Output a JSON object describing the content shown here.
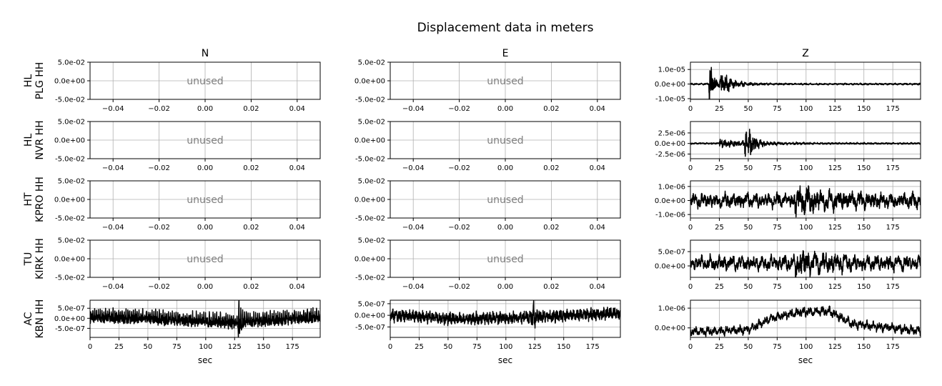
{
  "title": "Displacement data in meters",
  "columns": [
    "N",
    "E",
    "Z"
  ],
  "rows": [
    {
      "network": "HL",
      "station": "PLG HH"
    },
    {
      "network": "HL",
      "station": "NVR HH"
    },
    {
      "network": "HT",
      "station": "KPRO HH"
    },
    {
      "network": "TU",
      "station": "KIRK HH"
    },
    {
      "network": "AC",
      "station": "KBN HH"
    }
  ],
  "xlabel": "sec",
  "unused_label": "unused",
  "chart_data": [
    {
      "type": "line",
      "row": 0,
      "col": 0,
      "placeholder": true,
      "text": "unused",
      "xlim": [
        -0.05,
        0.05
      ],
      "xticks": [
        -0.04,
        -0.02,
        0.0,
        0.02,
        0.04
      ],
      "xticklabels": [
        "−0.04",
        "−0.02",
        "0.00",
        "0.02",
        "0.04"
      ],
      "ylim": [
        -0.05,
        0.05
      ],
      "yticks": [
        0.05,
        0.0,
        -0.05
      ],
      "yticklabels": [
        "5.0e-02",
        "0.0e+00",
        "-5.0e-02"
      ],
      "grid": true
    },
    {
      "type": "line",
      "row": 0,
      "col": 1,
      "placeholder": true,
      "text": "unused",
      "xlim": [
        -0.05,
        0.05
      ],
      "xticks": [
        -0.04,
        -0.02,
        0.0,
        0.02,
        0.04
      ],
      "xticklabels": [
        "−0.04",
        "−0.02",
        "0.00",
        "0.02",
        "0.04"
      ],
      "ylim": [
        -0.05,
        0.05
      ],
      "yticks": [
        0.05,
        0.0,
        -0.05
      ],
      "yticklabels": [
        "5.0e-02",
        "0.0e+00",
        "-5.0e-02"
      ],
      "grid": true
    },
    {
      "type": "line",
      "row": 0,
      "col": 2,
      "xlabel": "",
      "xlim": [
        0,
        199
      ],
      "xticks": [
        0,
        25,
        50,
        75,
        100,
        125,
        150,
        175
      ],
      "ylim": [
        -1.05e-05,
        1.5e-05
      ],
      "yticks": [
        1e-05,
        0.0,
        -1e-05
      ],
      "yticklabels": [
        "1.0e-05",
        "0.0e+00",
        "-1.0e-05"
      ],
      "grid": true,
      "signal": {
        "duration": 199,
        "samples": 1300,
        "noise": 4e-07,
        "periods": [
          0.6,
          1.3,
          2.7,
          4.3
        ],
        "events": [
          {
            "t": 16.0,
            "amp": 1.2e-05,
            "decay": 4.0
          },
          {
            "t": 25.0,
            "amp": 6e-06,
            "decay": 10.0
          }
        ],
        "seed": 1
      }
    },
    {
      "type": "line",
      "row": 1,
      "col": 0,
      "placeholder": true,
      "text": "unused",
      "xlim": [
        -0.05,
        0.05
      ],
      "xticks": [
        -0.04,
        -0.02,
        0.0,
        0.02,
        0.04
      ],
      "xticklabels": [
        "−0.04",
        "−0.02",
        "0.00",
        "0.02",
        "0.04"
      ],
      "ylim": [
        -0.05,
        0.05
      ],
      "yticks": [
        0.05,
        0.0,
        -0.05
      ],
      "yticklabels": [
        "5.0e-02",
        "0.0e+00",
        "-5.0e-02"
      ],
      "grid": true
    },
    {
      "type": "line",
      "row": 1,
      "col": 1,
      "placeholder": true,
      "text": "unused",
      "xlim": [
        -0.05,
        0.05
      ],
      "xticks": [
        -0.04,
        -0.02,
        0.0,
        0.02,
        0.04
      ],
      "xticklabels": [
        "−0.04",
        "−0.02",
        "0.00",
        "0.02",
        "0.04"
      ],
      "ylim": [
        -0.05,
        0.05
      ],
      "yticks": [
        0.05,
        0.0,
        -0.05
      ],
      "yticklabels": [
        "5.0e-02",
        "0.0e+00",
        "-5.0e-02"
      ],
      "grid": true
    },
    {
      "type": "line",
      "row": 1,
      "col": 2,
      "xlabel": "",
      "xlim": [
        0,
        199
      ],
      "xticks": [
        0,
        25,
        50,
        75,
        100,
        125,
        150,
        175
      ],
      "ylim": [
        -3.6e-06,
        5.2e-06
      ],
      "yticks": [
        2.5e-06,
        0.0,
        -2.5e-06
      ],
      "yticklabels": [
        "2.5e-06",
        "0.0e+00",
        "-2.5e-06"
      ],
      "grid": true,
      "signal": {
        "duration": 199,
        "samples": 1300,
        "noise": 1.3e-07,
        "periods": [
          0.7,
          1.5,
          3.1,
          5.2
        ],
        "events": [
          {
            "t": 25.0,
            "amp": 6e-07,
            "decay": 25.0
          },
          {
            "t": 47.0,
            "amp": 3.2e-06,
            "decay": 6.0
          }
        ],
        "seed": 2
      }
    },
    {
      "type": "line",
      "row": 2,
      "col": 0,
      "placeholder": true,
      "text": "unused",
      "xlim": [
        -0.05,
        0.05
      ],
      "xticks": [
        -0.04,
        -0.02,
        0.0,
        0.02,
        0.04
      ],
      "xticklabels": [
        "−0.04",
        "−0.02",
        "0.00",
        "0.02",
        "0.04"
      ],
      "ylim": [
        -0.05,
        0.05
      ],
      "yticks": [
        0.05,
        0.0,
        -0.05
      ],
      "yticklabels": [
        "5.0e-02",
        "0.0e+00",
        "-5.0e-02"
      ],
      "grid": true
    },
    {
      "type": "line",
      "row": 2,
      "col": 1,
      "placeholder": true,
      "text": "unused",
      "xlim": [
        -0.05,
        0.05
      ],
      "xticks": [
        -0.04,
        -0.02,
        0.0,
        0.02,
        0.04
      ],
      "xticklabels": [
        "−0.04",
        "−0.02",
        "0.00",
        "0.02",
        "0.04"
      ],
      "ylim": [
        -0.05,
        0.05
      ],
      "yticks": [
        0.05,
        0.0,
        -0.05
      ],
      "yticklabels": [
        "5.0e-02",
        "0.0e+00",
        "-5.0e-02"
      ],
      "grid": true
    },
    {
      "type": "line",
      "row": 2,
      "col": 2,
      "xlabel": "",
      "xlim": [
        0,
        199
      ],
      "xticks": [
        0,
        25,
        50,
        75,
        100,
        125,
        150,
        175
      ],
      "ylim": [
        -1.25e-06,
        1.4e-06
      ],
      "yticks": [
        1e-06,
        0.0,
        -1e-06
      ],
      "yticklabels": [
        "1.0e-06",
        "0.0e+00",
        "-1.0e-06"
      ],
      "grid": true,
      "signal": {
        "duration": 199,
        "samples": 1300,
        "noise": 3.5e-07,
        "periods": [
          2.5,
          4.0,
          6.5,
          9.0
        ],
        "events": [
          {
            "t": 90.0,
            "amp": 4e-07,
            "decay": 30.0
          }
        ],
        "seed": 3
      }
    },
    {
      "type": "line",
      "row": 3,
      "col": 0,
      "placeholder": true,
      "text": "unused",
      "xlim": [
        -0.05,
        0.05
      ],
      "xticks": [
        -0.04,
        -0.02,
        0.0,
        0.02,
        0.04
      ],
      "xticklabels": [
        "−0.04",
        "−0.02",
        "0.00",
        "0.02",
        "0.04"
      ],
      "ylim": [
        -0.05,
        0.05
      ],
      "yticks": [
        0.05,
        0.0,
        -0.05
      ],
      "yticklabels": [
        "5.0e-02",
        "0.0e+00",
        "-5.0e-02"
      ],
      "grid": true
    },
    {
      "type": "line",
      "row": 3,
      "col": 1,
      "placeholder": true,
      "text": "unused",
      "xlim": [
        -0.05,
        0.05
      ],
      "xticks": [
        -0.04,
        -0.02,
        0.0,
        0.02,
        0.04
      ],
      "xticklabels": [
        "−0.04",
        "−0.02",
        "0.00",
        "0.02",
        "0.04"
      ],
      "ylim": [
        -0.05,
        0.05
      ],
      "yticks": [
        0.05,
        0.0,
        -0.05
      ],
      "yticklabels": [
        "5.0e-02",
        "0.0e+00",
        "-5.0e-02"
      ],
      "grid": true
    },
    {
      "type": "line",
      "row": 3,
      "col": 2,
      "xlabel": "",
      "xlim": [
        0,
        199
      ],
      "xticks": [
        0,
        25,
        50,
        75,
        100,
        125,
        150,
        175
      ],
      "ylim": [
        -4e-07,
        9e-07
      ],
      "yticks": [
        5e-07,
        0.0
      ],
      "yticklabels": [
        "5.0e-07",
        "0.0e+00"
      ],
      "grid": true,
      "signal": {
        "duration": 199,
        "samples": 1300,
        "noise": 1.6e-07,
        "offset": 1e-07,
        "periods": [
          2.5,
          4.0,
          6.5,
          9.0
        ],
        "events": [
          {
            "t": 90.0,
            "amp": 2.2e-07,
            "decay": 25.0
          }
        ],
        "seed": 4
      }
    },
    {
      "type": "line",
      "row": 4,
      "col": 0,
      "xlabel": "sec",
      "xlim": [
        0,
        199
      ],
      "xticks": [
        0,
        25,
        50,
        75,
        100,
        125,
        150,
        175
      ],
      "ylim": [
        -9.5e-07,
        9e-07
      ],
      "yticks": [
        5e-07,
        0.0,
        -5e-07
      ],
      "yticklabels": [
        "5.0e-07",
        "0.0e+00",
        "-5.0e-07"
      ],
      "grid": true,
      "signal": {
        "duration": 199,
        "samples": 1500,
        "noise": 2.2e-07,
        "periods": [
          0.8,
          1.6,
          2.9
        ],
        "trend": [
          [
            0,
            1e-07
          ],
          [
            60,
            0.0
          ],
          [
            125,
            -1.8e-07
          ],
          [
            199,
            1e-07
          ]
        ],
        "events": [
          {
            "t": 128.0,
            "amp": 6e-07,
            "decay": 2.0
          }
        ],
        "seed": 5
      }
    },
    {
      "type": "line",
      "row": 4,
      "col": 1,
      "xlabel": "sec",
      "xlim": [
        0,
        199
      ],
      "xticks": [
        0,
        25,
        50,
        75,
        100,
        125,
        150,
        175
      ],
      "ylim": [
        -9.5e-07,
        6.5e-07
      ],
      "yticks": [
        5e-07,
        0.0,
        -5e-07
      ],
      "yticklabels": [
        "5.0e-07",
        "0.0e+00",
        "-5.0e-07"
      ],
      "grid": true,
      "signal": {
        "duration": 199,
        "samples": 1500,
        "noise": 2e-07,
        "periods": [
          0.8,
          1.6,
          2.9
        ],
        "trend": [
          [
            0,
            0.0
          ],
          [
            60,
            -1.5e-07
          ],
          [
            110,
            -1e-07
          ],
          [
            199,
            1e-07
          ]
        ],
        "events": [
          {
            "t": 122.0,
            "amp": 5e-07,
            "decay": 2.5
          }
        ],
        "seed": 6
      }
    },
    {
      "type": "line",
      "row": 4,
      "col": 2,
      "xlabel": "sec",
      "xlim": [
        0,
        199
      ],
      "xticks": [
        0,
        25,
        50,
        75,
        100,
        125,
        150,
        175
      ],
      "ylim": [
        -4.8e-07,
        1.4e-06
      ],
      "yticks": [
        1e-06,
        0.0
      ],
      "yticklabels": [
        "1.0e-06",
        "0.0e+00"
      ],
      "grid": true,
      "signal": {
        "duration": 199,
        "samples": 1300,
        "noise": 1.4e-07,
        "periods": [
          1.8,
          3.2,
          5.5
        ],
        "trend": [
          [
            0,
            -2e-07
          ],
          [
            50,
            -1e-07
          ],
          [
            70,
            5e-07
          ],
          [
            95,
            8e-07
          ],
          [
            120,
            8.5e-07
          ],
          [
            140,
            2e-07
          ],
          [
            199,
            -1.5e-07
          ]
        ],
        "events": [],
        "seed": 7
      }
    }
  ]
}
